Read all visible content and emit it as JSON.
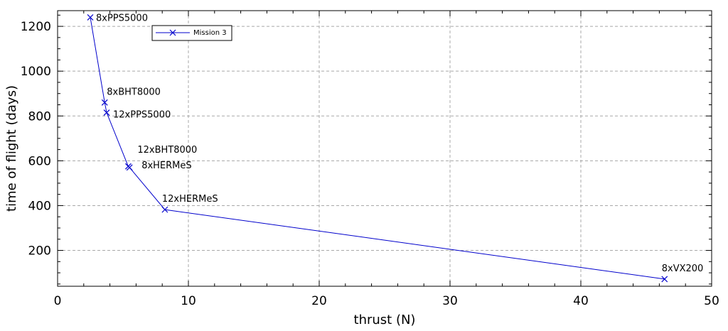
{
  "chart_data": {
    "type": "line",
    "xlabel": "thrust (N)",
    "ylabel": "time of flight (days)",
    "xlim": [
      0,
      50
    ],
    "ylim": [
      40,
      1270
    ],
    "xticks": [
      0,
      10,
      20,
      30,
      40,
      50
    ],
    "yticks": [
      200,
      400,
      600,
      800,
      1000,
      1200
    ],
    "x_minor_step": 2,
    "y_minor_step": 50,
    "grid": true,
    "legend_position": "top-left",
    "series": [
      {
        "name": "Mission 3",
        "color": "#0000cc",
        "marker": "x",
        "points": [
          {
            "x": 2.5,
            "y": 1240,
            "label": "8xPPS5000"
          },
          {
            "x": 3.6,
            "y": 860,
            "label": "8xBHT8000"
          },
          {
            "x": 3.75,
            "y": 815,
            "label": "12xPPS5000"
          },
          {
            "x": 5.4,
            "y": 575,
            "label": "12xBHT8000"
          },
          {
            "x": 5.5,
            "y": 570,
            "label": "8xHERMeS"
          },
          {
            "x": 8.2,
            "y": 382,
            "label": "12xHERMeS"
          },
          {
            "x": 46.4,
            "y": 72,
            "label": "8xVX200"
          }
        ]
      }
    ]
  }
}
